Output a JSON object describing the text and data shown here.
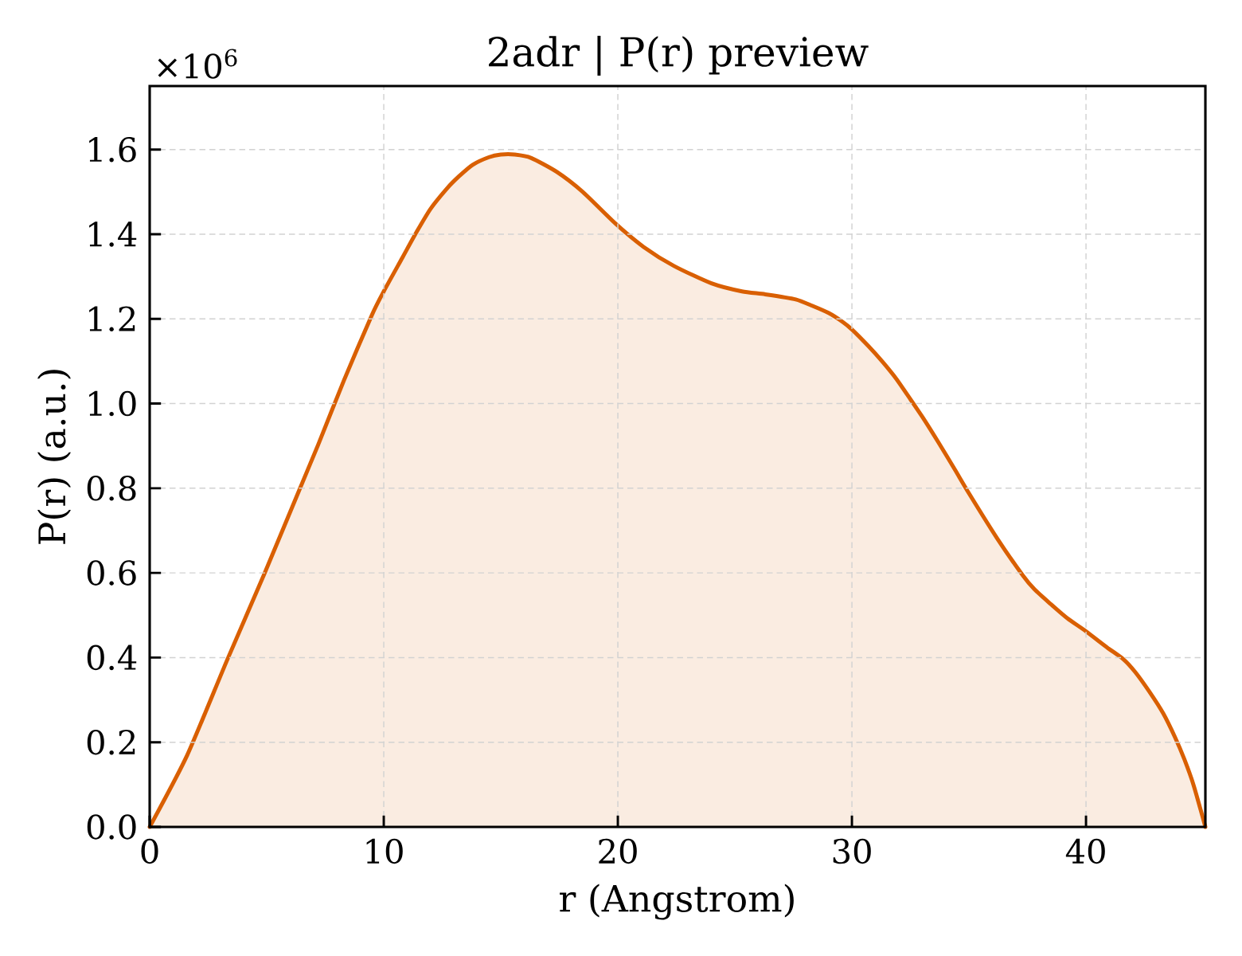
{
  "chart_data": {
    "type": "area",
    "title": "2adr | P(r) preview",
    "xlabel": "r (Angstrom)",
    "ylabel": "P(r) (a.u.)",
    "annotations": [
      "×10$^{6}$"
    ],
    "x": [
      0,
      1.6,
      3.3,
      4.9,
      6.4,
      7.2,
      8.3,
      9.5,
      10.0,
      10.8,
      11.4,
      12.0,
      12.7,
      13.2,
      13.8,
      14.5,
      15.0,
      15.6,
      16.3,
      17.4,
      18.5,
      19.9,
      21.1,
      22.4,
      24.0,
      25.3,
      26.3,
      27.6,
      28.3,
      29.0,
      29.6,
      30.0,
      30.7,
      31.3,
      31.9,
      32.5,
      33.1,
      33.7,
      34.4,
      35.0,
      36.2,
      37.3,
      37.8,
      38.5,
      39.2,
      40.0,
      40.9,
      41.6,
      42.1,
      42.7,
      43.3,
      43.8,
      44.2,
      44.6,
      45.1
    ],
    "values": [
      0,
      0.169,
      0.393,
      0.598,
      0.797,
      0.903,
      1.055,
      1.21,
      1.265,
      1.345,
      1.405,
      1.46,
      1.508,
      1.536,
      1.564,
      1.582,
      1.588,
      1.588,
      1.58,
      1.547,
      1.5,
      1.425,
      1.37,
      1.325,
      1.284,
      1.265,
      1.258,
      1.246,
      1.231,
      1.214,
      1.193,
      1.175,
      1.136,
      1.099,
      1.058,
      1.01,
      0.961,
      0.908,
      0.844,
      0.788,
      0.682,
      0.594,
      0.561,
      0.526,
      0.493,
      0.462,
      0.424,
      0.396,
      0.366,
      0.32,
      0.268,
      0.212,
      0.16,
      0.098,
      0
    ],
    "color": "#d95f02",
    "xlim": [
      0,
      45.1
    ],
    "ylim": [
      0,
      1.75
    ],
    "xticks": [
      0,
      10,
      20,
      30,
      40
    ],
    "yticks": [
      {
        "value": 0,
        "label": "0.0"
      },
      0.2,
      0.4,
      0.6,
      0.8,
      {
        "value": 1,
        "label": "1.0"
      },
      1.2,
      1.4,
      1.6
    ],
    "grid": true
  }
}
